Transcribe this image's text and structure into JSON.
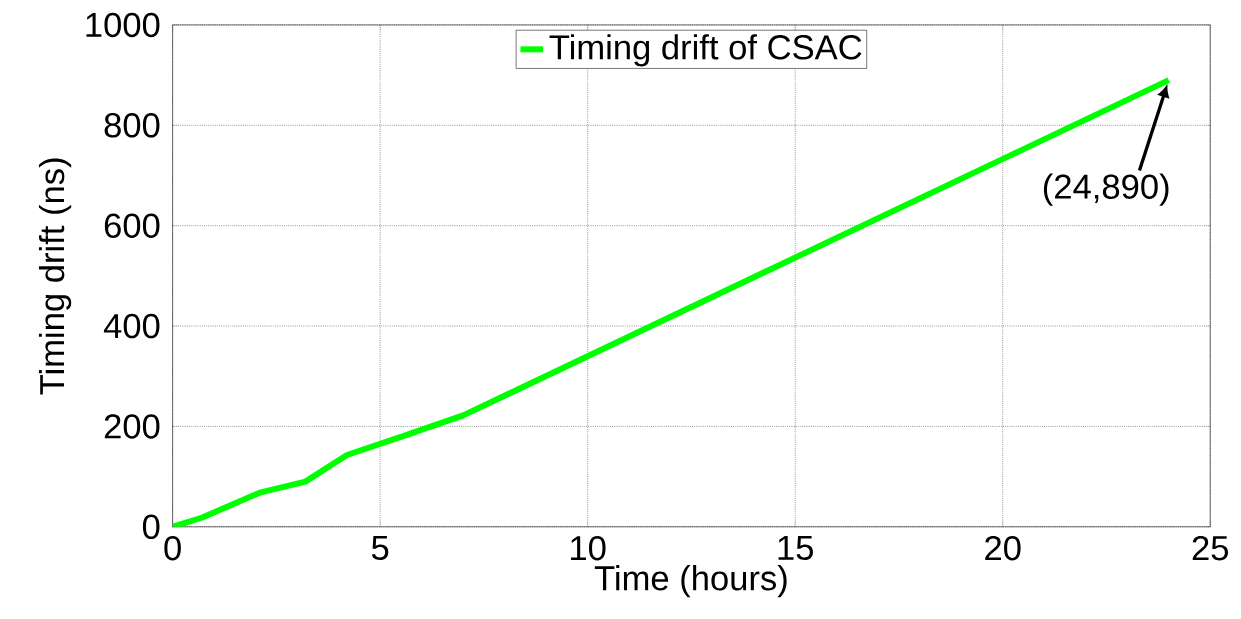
{
  "chart_data": {
    "type": "line",
    "xlabel": "Time (hours)",
    "ylabel": "Timing drift (ns)",
    "x": [
      0,
      0.7,
      2.1,
      3.2,
      4.2,
      5.5,
      7.0,
      24
    ],
    "series": [
      {
        "name": "Timing drift of CSAC",
        "color": "#00ff00",
        "values": [
          0,
          18,
          68,
          90,
          143,
          179,
          222,
          890
        ]
      }
    ],
    "xlim": [
      0,
      25
    ],
    "ylim": [
      0,
      1000
    ],
    "xticks": [
      0,
      5,
      10,
      15,
      20,
      25
    ],
    "yticks": [
      0,
      200,
      400,
      600,
      800,
      1000
    ],
    "grid": true,
    "legend": "top",
    "marker": "none",
    "line_style": "solid",
    "annotations": [
      {
        "text": "(24,890)",
        "x": 24,
        "y": 890
      }
    ]
  }
}
